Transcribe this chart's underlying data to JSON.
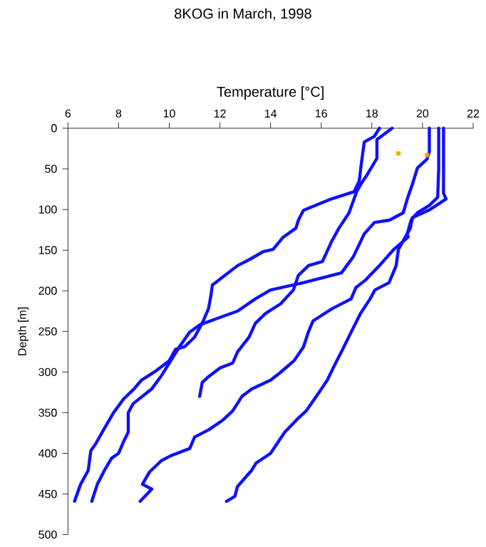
{
  "chart_data": {
    "type": "line",
    "title": "8KOG in March, 1998",
    "xlabel": "Temperature [°C]",
    "ylabel": "Depth [m]",
    "xlim": [
      6,
      22
    ],
    "xticks": [
      6,
      8,
      10,
      12,
      14,
      16,
      18,
      20,
      22
    ],
    "ylim": [
      500,
      0
    ],
    "yticks": [
      0,
      50,
      100,
      150,
      200,
      250,
      300,
      350,
      400,
      450,
      500
    ],
    "grid": false,
    "series": [
      {
        "color": "#1010ff",
        "x": [
          18.3,
          18.1,
          17.7,
          17.6,
          17.5,
          17.3,
          16.4,
          15.3,
          15.1,
          15.0,
          14.5,
          14.1,
          13.7,
          13.2,
          12.7,
          12.2,
          11.7,
          11.65,
          11.55,
          11.3,
          11.0,
          10.6,
          10.25,
          10.0,
          9.5,
          8.9,
          8.6,
          8.2,
          7.8,
          7.35,
          7.1,
          6.9,
          6.8,
          6.5,
          6.26
        ],
        "values": [
          0,
          10,
          17,
          40,
          65,
          78,
          87,
          101,
          113,
          123,
          134,
          149,
          152,
          161,
          169,
          181,
          193,
          205,
          222,
          240,
          257,
          269,
          272,
          286,
          298,
          310,
          321,
          333,
          350,
          374,
          388,
          397,
          421,
          438,
          459
        ]
      },
      {
        "color": "#1010ff",
        "x": [
          18.8,
          18.2,
          18.2,
          17.8,
          17.6,
          17.4,
          17.1,
          16.7,
          16.4,
          16.05,
          15.5,
          15.1,
          14.9,
          14.4,
          13.8,
          13.4,
          13.15,
          12.7,
          12.5,
          12.0,
          11.5,
          11.3,
          11.2
        ],
        "values": [
          0,
          14,
          37,
          58,
          67,
          78,
          104,
          123,
          140,
          164,
          169,
          181,
          199,
          216,
          228,
          240,
          257,
          275,
          289,
          295,
          307,
          313,
          330
        ]
      },
      {
        "color": "#1010ff",
        "x": [
          20.27,
          20.27,
          20.18,
          19.8,
          19.6,
          19.4,
          19.24,
          18.7,
          18.1,
          17.7,
          17.27,
          16.8,
          15.3,
          14.0,
          13.4,
          12.7,
          11.9,
          11.2,
          10.8,
          10.4,
          10.06,
          9.7,
          9.3,
          8.57,
          8.38,
          8.38,
          8.19,
          8.0,
          7.72,
          7.44,
          7.16,
          6.94
        ],
        "values": [
          0,
          29,
          38,
          49,
          69,
          87,
          104,
          113,
          116,
          130,
          158,
          178,
          190,
          199,
          210,
          225,
          234,
          242,
          251,
          269,
          286,
          304,
          321,
          339,
          350,
          374,
          386,
          400,
          406,
          421,
          438,
          459
        ]
      },
      {
        "color": "#1010ff",
        "x": [
          20.64,
          20.64,
          20.6,
          20.27,
          19.8,
          19.55,
          19.4,
          19.43,
          18.87,
          18.3,
          17.74,
          17.37,
          17.18,
          16.43,
          15.68,
          15.49,
          15.3,
          14.93,
          14.37,
          14.0,
          13.25,
          12.87,
          12.5,
          12.12,
          11.56,
          11.0,
          10.81,
          10.06,
          9.69,
          9.22,
          8.94,
          9.31,
          8.85
        ],
        "values": [
          0,
          50,
          85,
          95,
          104,
          113,
          130,
          134,
          149,
          169,
          187,
          196,
          210,
          222,
          237,
          251,
          269,
          286,
          301,
          310,
          321,
          330,
          348,
          359,
          371,
          380,
          394,
          403,
          409,
          423,
          438,
          444,
          459
        ]
      },
      {
        "color": "#1010ff",
        "x": [
          20.83,
          20.83,
          20.93,
          20.3,
          19.6,
          19.52,
          19.05,
          18.96,
          18.68,
          18.12,
          17.93,
          17.55,
          17.18,
          16.8,
          16.52,
          16.24,
          15.87,
          15.4,
          15.12,
          14.56,
          14.0,
          13.43,
          13.25,
          12.69,
          12.59,
          12.26
        ],
        "values": [
          0,
          80,
          87,
          100,
          110,
          123,
          149,
          169,
          190,
          199,
          210,
          228,
          251,
          275,
          292,
          310,
          327,
          348,
          356,
          374,
          400,
          412,
          421,
          441,
          453,
          459
        ]
      },
      {
        "type": "scatter",
        "marker": "square",
        "color": "#ffa500",
        "x": [
          19.05,
          20.18
        ],
        "values": [
          31,
          33
        ]
      }
    ]
  }
}
